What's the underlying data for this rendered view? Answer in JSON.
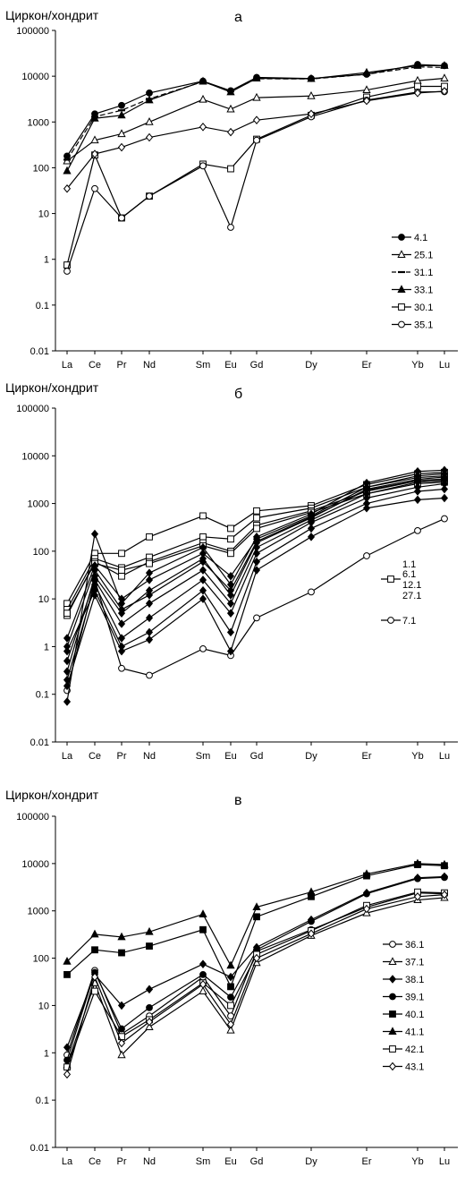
{
  "figure": {
    "panels_description": "Three REE chondrite-normalized zircon patterns (a, б, в)"
  },
  "chart_data": [
    {
      "type": "line",
      "panel_label": "а",
      "ylabel": "Циркон/хондрит",
      "yscale": "log",
      "ylim": [
        0.01,
        100000
      ],
      "yticks": [
        "0.01",
        "0.1",
        "1",
        "10",
        "100",
        "1000",
        "10000",
        "100000"
      ],
      "categories": [
        "La",
        "Ce",
        "Pr",
        "Nd",
        "Sm",
        "Eu",
        "Gd",
        "Dy",
        "Er",
        "Yb",
        "Lu"
      ],
      "legend_position": "right",
      "series": [
        {
          "name": "4.1",
          "marker": "circle-filled",
          "style": "solid",
          "values": [
            180,
            1500,
            2300,
            4300,
            7800,
            4800,
            9400,
            8900,
            11000,
            18000,
            17000
          ]
        },
        {
          "name": "25.1",
          "marker": "triangle-open",
          "style": "solid",
          "values": [
            140,
            400,
            550,
            1000,
            3100,
            1900,
            3400,
            3700,
            5000,
            8000,
            9000
          ]
        },
        {
          "name": "31.1",
          "marker": "dash",
          "style": "dashed",
          "values": [
            150,
            1300,
            1800,
            3200,
            7600,
            4700,
            8800,
            8700,
            11000,
            16000,
            15500
          ]
        },
        {
          "name": "33.1",
          "marker": "triangle-filled",
          "style": "solid",
          "values": [
            85,
            1200,
            1400,
            3000,
            7700,
            4500,
            9000,
            8800,
            12000,
            17000,
            17000
          ]
        },
        {
          "name": "30.1",
          "marker": "square-open",
          "style": "solid",
          "values": [
            0.75,
            190,
            8,
            24,
            120,
            95,
            420,
            1400,
            3500,
            6000,
            6000
          ]
        },
        {
          "name": "35.1",
          "marker": "circle-open",
          "style": "solid",
          "values": [
            0.55,
            35,
            8,
            24,
            110,
            5,
            400,
            1300,
            3000,
            4500,
            4600
          ]
        },
        {
          "name": "",
          "marker": "diamond-open",
          "style": "solid",
          "values": [
            35,
            200,
            280,
            460,
            780,
            600,
            1100,
            1500,
            2900,
            4300,
            4700
          ]
        }
      ]
    },
    {
      "type": "line",
      "panel_label": "б",
      "ylabel": "Циркон/хондрит",
      "yscale": "log",
      "ylim": [
        0.01,
        100000
      ],
      "yticks": [
        "0.01",
        "0.1",
        "1",
        "10",
        "100",
        "1000",
        "10000",
        "100000"
      ],
      "categories": [
        "La",
        "Ce",
        "Pr",
        "Nd",
        "Sm",
        "Eu",
        "Gd",
        "Dy",
        "Er",
        "Yb",
        "Lu"
      ],
      "legend_position": "right",
      "legend_entries": [
        "1.1",
        "6.1",
        "12.1",
        "27.1",
        "7.1"
      ],
      "series": [
        {
          "name": "1.1",
          "marker": "square-open",
          "style": "solid",
          "values": [
            8,
            90,
            90,
            200,
            550,
            300,
            700,
            900,
            2500,
            4200,
            4500
          ]
        },
        {
          "name": "6.1",
          "marker": "square-open",
          "style": "solid",
          "values": [
            6,
            70,
            45,
            75,
            200,
            180,
            500,
            800,
            2200,
            3500,
            3800
          ]
        },
        {
          "name": "12.1",
          "marker": "square-open",
          "style": "solid",
          "values": [
            4.5,
            60,
            30,
            60,
            150,
            100,
            350,
            700,
            1800,
            3000,
            3200
          ]
        },
        {
          "name": "27.1",
          "marker": "square-open",
          "style": "solid",
          "values": [
            5,
            55,
            40,
            55,
            130,
            90,
            300,
            650,
            1600,
            2600,
            2800
          ]
        },
        {
          "name": "7.1",
          "marker": "circle-open",
          "style": "solid",
          "values": [
            0.12,
            25,
            0.35,
            0.25,
            0.9,
            0.65,
            4,
            14,
            80,
            270,
            480
          ]
        },
        {
          "name": "",
          "marker": "diamond-filled",
          "style": "solid",
          "values": [
            0.07,
            230,
            8,
            35,
            120,
            20,
            200,
            600,
            2700,
            4700,
            5000
          ]
        },
        {
          "name": "",
          "marker": "diamond-filled",
          "style": "solid",
          "values": [
            1.5,
            50,
            10,
            25,
            90,
            30,
            180,
            550,
            2200,
            3800,
            4200
          ]
        },
        {
          "name": "",
          "marker": "diamond-filled",
          "style": "solid",
          "values": [
            0.3,
            30,
            5,
            15,
            70,
            12,
            150,
            500,
            2000,
            3200,
            3600
          ]
        },
        {
          "name": "",
          "marker": "diamond-filled",
          "style": "solid",
          "values": [
            0.5,
            25,
            3,
            8,
            40,
            8,
            120,
            450,
            1600,
            2800,
            3000
          ]
        },
        {
          "name": "",
          "marker": "diamond-filled",
          "style": "solid",
          "values": [
            0.2,
            20,
            1.5,
            4,
            25,
            5,
            90,
            400,
            1300,
            2200,
            2600
          ]
        },
        {
          "name": "",
          "marker": "diamond-filled",
          "style": "solid",
          "values": [
            0.8,
            15,
            1,
            2,
            15,
            2,
            60,
            300,
            1000,
            1800,
            2000
          ]
        },
        {
          "name": "",
          "marker": "diamond-filled",
          "style": "solid",
          "values": [
            0.15,
            12,
            0.8,
            1.4,
            10,
            0.8,
            40,
            200,
            800,
            1200,
            1300
          ]
        },
        {
          "name": "",
          "marker": "diamond-filled",
          "style": "solid",
          "values": [
            1.0,
            40,
            6,
            12,
            60,
            15,
            160,
            520,
            1900,
            3000,
            3300
          ]
        }
      ]
    },
    {
      "type": "line",
      "panel_label": "в",
      "ylabel": "Циркон/хондрит",
      "yscale": "log",
      "ylim": [
        0.01,
        100000
      ],
      "yticks": [
        "0.01",
        "0.1",
        "1",
        "10",
        "100",
        "1000",
        "10000",
        "100000"
      ],
      "categories": [
        "La",
        "Ce",
        "Pr",
        "Nd",
        "Sm",
        "Eu",
        "Gd",
        "Dy",
        "Er",
        "Yb",
        "Lu"
      ],
      "legend_position": "right",
      "series": [
        {
          "name": "36.1",
          "marker": "circle-open",
          "style": "solid",
          "values": [
            0.9,
            55,
            2.5,
            6,
            40,
            6,
            140,
            400,
            1200,
            2400,
            2300
          ]
        },
        {
          "name": "37.1",
          "marker": "triangle-open",
          "style": "solid",
          "values": [
            0.55,
            30,
            0.9,
            3.5,
            20,
            3,
            80,
            300,
            900,
            1700,
            1900
          ]
        },
        {
          "name": "38.1",
          "marker": "diamond-filled",
          "style": "solid",
          "values": [
            1.3,
            45,
            10,
            22,
            75,
            40,
            170,
            650,
            2400,
            5000,
            5300
          ]
        },
        {
          "name": "39.1",
          "marker": "circle-filled",
          "style": "solid",
          "values": [
            0.7,
            50,
            3.2,
            9,
            45,
            15,
            150,
            600,
            2300,
            4800,
            5100
          ]
        },
        {
          "name": "40.1",
          "marker": "square-filled",
          "style": "solid",
          "values": [
            45,
            150,
            130,
            180,
            400,
            25,
            750,
            2000,
            5500,
            9500,
            9000
          ]
        },
        {
          "name": "41.1",
          "marker": "triangle-filled",
          "style": "solid",
          "values": [
            85,
            320,
            280,
            360,
            850,
            70,
            1200,
            2500,
            6000,
            10000,
            9500
          ]
        },
        {
          "name": "42.1",
          "marker": "square-open",
          "style": "solid",
          "values": [
            0.5,
            20,
            2.2,
            5,
            30,
            10,
            120,
            380,
            1300,
            2500,
            2400
          ]
        },
        {
          "name": "43.1",
          "marker": "diamond-open",
          "style": "solid",
          "values": [
            0.35,
            40,
            1.6,
            4.5,
            28,
            4,
            100,
            330,
            1100,
            2000,
            2200
          ]
        }
      ]
    }
  ]
}
